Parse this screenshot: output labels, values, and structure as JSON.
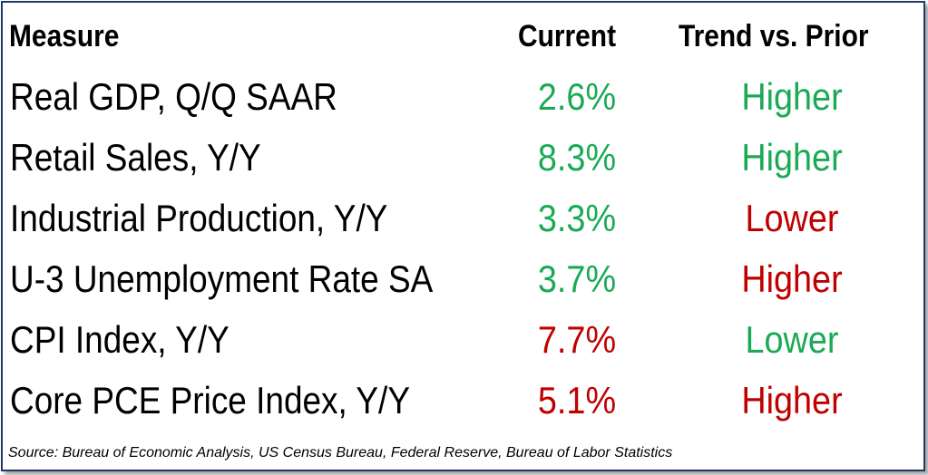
{
  "colors": {
    "positive": "#1aaa55",
    "negative": "#c00000",
    "border": "#1f3a64"
  },
  "table": {
    "headers": {
      "measure": "Measure",
      "current": "Current",
      "trend": "Trend vs. Prior"
    },
    "rows": [
      {
        "measure": "Real GDP, Q/Q SAAR",
        "current": "2.6%",
        "current_status": "positive",
        "trend": "Higher",
        "trend_status": "positive"
      },
      {
        "measure": "Retail Sales, Y/Y",
        "current": "8.3%",
        "current_status": "positive",
        "trend": "Higher",
        "trend_status": "positive"
      },
      {
        "measure": "Industrial Production, Y/Y",
        "current": "3.3%",
        "current_status": "positive",
        "trend": "Lower",
        "trend_status": "negative"
      },
      {
        "measure": "U-3 Unemployment Rate SA",
        "current": "3.7%",
        "current_status": "positive",
        "trend": "Higher",
        "trend_status": "negative"
      },
      {
        "measure": "CPI Index, Y/Y",
        "current": "7.7%",
        "current_status": "negative",
        "trend": "Lower",
        "trend_status": "positive"
      },
      {
        "measure": "Core PCE Price Index, Y/Y",
        "current": "5.1%",
        "current_status": "negative",
        "trend": "Higher",
        "trend_status": "negative"
      }
    ],
    "source": "Source: Bureau of Economic Analysis, US Census Bureau, Federal Reserve, Bureau of Labor Statistics"
  },
  "chart_data": {
    "type": "table",
    "columns": [
      "Measure",
      "Current",
      "Trend vs. Prior"
    ],
    "rows": [
      [
        "Real GDP, Q/Q SAAR",
        "2.6%",
        "Higher"
      ],
      [
        "Retail Sales, Y/Y",
        "8.3%",
        "Higher"
      ],
      [
        "Industrial Production, Y/Y",
        "3.3%",
        "Lower"
      ],
      [
        "U-3 Unemployment Rate SA",
        "3.7%",
        "Higher"
      ],
      [
        "CPI Index, Y/Y",
        "7.7%",
        "Lower"
      ],
      [
        "Core PCE Price Index, Y/Y",
        "5.1%",
        "Higher"
      ]
    ],
    "source": "Source: Bureau of Economic Analysis, US Census Bureau, Federal Reserve, Bureau of Labor Statistics"
  }
}
